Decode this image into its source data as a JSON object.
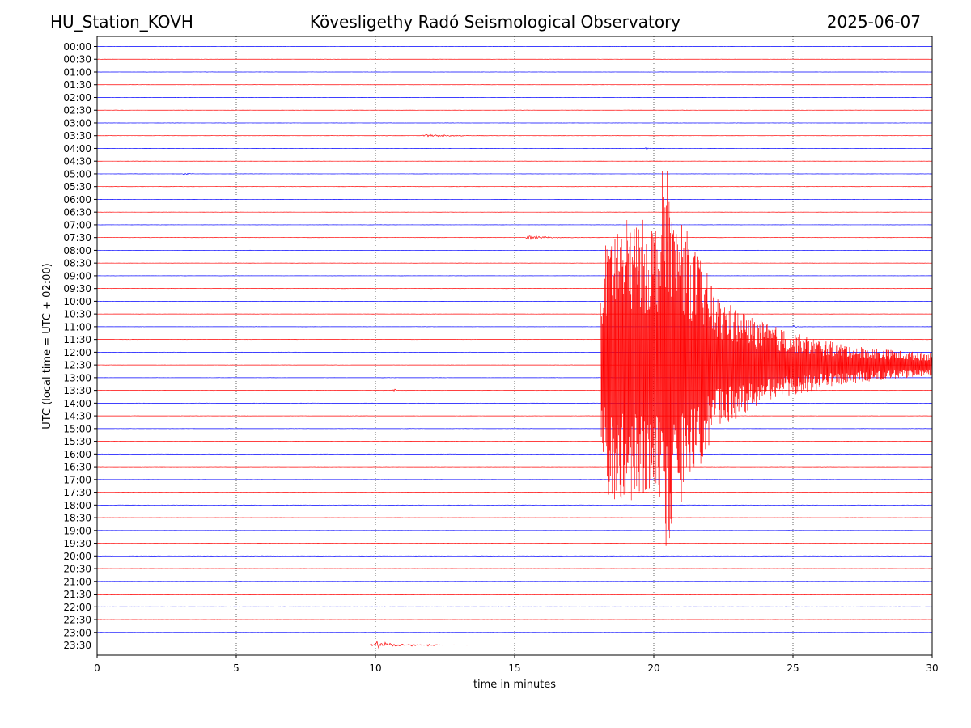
{
  "header": {
    "station": "HU_Station_KOVH",
    "observatory": "Kövesligethy Radó Seismological Observatory",
    "date": "2025-06-07"
  },
  "chart_data": {
    "type": "line",
    "title": "Kövesligethy Radó Seismological Observatory",
    "xlabel": "time in minutes",
    "ylabel": "UTC (local time = UTC + 02:00)",
    "xlim": [
      0,
      30
    ],
    "xticks": [
      "0",
      "5",
      "10",
      "15",
      "20",
      "25",
      "30"
    ],
    "grid": "vertical dotted at x ticks",
    "colors": {
      "even_row": "#0000ff",
      "odd_row": "#ff0000",
      "grid": "#000000"
    },
    "rows": [
      "00:00",
      "00:30",
      "01:00",
      "01:30",
      "02:00",
      "02:30",
      "03:00",
      "03:30",
      "04:00",
      "04:30",
      "05:00",
      "05:30",
      "06:00",
      "06:30",
      "07:00",
      "07:30",
      "08:00",
      "08:30",
      "09:00",
      "09:30",
      "10:00",
      "10:30",
      "11:00",
      "11:30",
      "12:00",
      "12:30",
      "13:00",
      "13:30",
      "14:00",
      "14:30",
      "15:00",
      "15:30",
      "16:00",
      "16:30",
      "17:00",
      "17:30",
      "18:00",
      "18:30",
      "19:00",
      "19:30",
      "20:00",
      "20:30",
      "21:00",
      "21:30",
      "22:00",
      "22:30",
      "23:00",
      "23:30"
    ],
    "noise_level": 0.12,
    "events": [
      {
        "row": "03:30",
        "t_start": 11.6,
        "t_end": 14.5,
        "amp": 0.55
      },
      {
        "row": "07:30",
        "t_start": 15.4,
        "t_end": 17.5,
        "amp": 0.9
      },
      {
        "row": "13:30",
        "t_start": 10.6,
        "t_end": 11.2,
        "amp": 0.45
      },
      {
        "row": "23:30",
        "t_start": 9.8,
        "t_end": 13.5,
        "amp": 1.0
      },
      {
        "row": "23:30",
        "t_start": 11.8,
        "t_end": 12.6,
        "amp": 0.6
      },
      {
        "row": "05:00",
        "t_start": 3.1,
        "t_end": 3.5,
        "amp": 0.45
      },
      {
        "row": "04:00",
        "t_start": 19.7,
        "t_end": 20.0,
        "amp": 0.35
      },
      {
        "row": "11:00",
        "t_start": 25.0,
        "t_end": 25.5,
        "amp": 0.35
      }
    ],
    "main_event": {
      "row": "12:30",
      "t_start": 18.1,
      "t_peak": 20.5,
      "t_end": 30,
      "amp_min_offset": -16,
      "amp_max_offset": 17
    }
  }
}
